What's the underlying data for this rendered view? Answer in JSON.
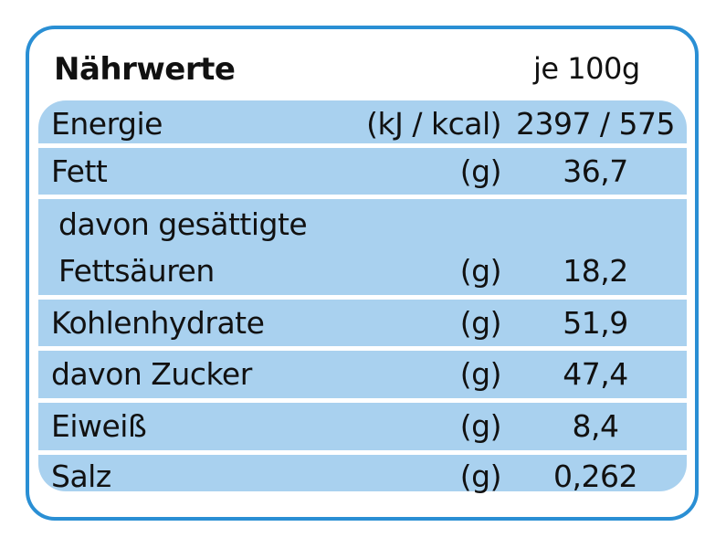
{
  "header": {
    "title": "Nährwerte",
    "per": "je 100g"
  },
  "rows": [
    {
      "name": "Energie",
      "unit": "(kJ / kcal)",
      "value": "2397 / 575"
    },
    {
      "name": "Fett",
      "unit": "(g)",
      "value": "36,7"
    },
    {
      "name_line1": "davon gesättigte",
      "name_line2": "Fettsäuren",
      "unit": "(g)",
      "value": "18,2"
    },
    {
      "name": "Kohlenhydrate",
      "unit": "(g)",
      "value": "51,9"
    },
    {
      "name": "davon Zucker",
      "unit": "(g)",
      "value": "47,4"
    },
    {
      "name": "Eiweiß",
      "unit": "(g)",
      "value": "8,4"
    },
    {
      "name": "Salz",
      "unit": "(g)",
      "value": "0,262"
    }
  ],
  "colors": {
    "border": "#2a8fd4",
    "panel": "#a9d1ef",
    "divider": "#ffffff",
    "text": "#111111"
  }
}
